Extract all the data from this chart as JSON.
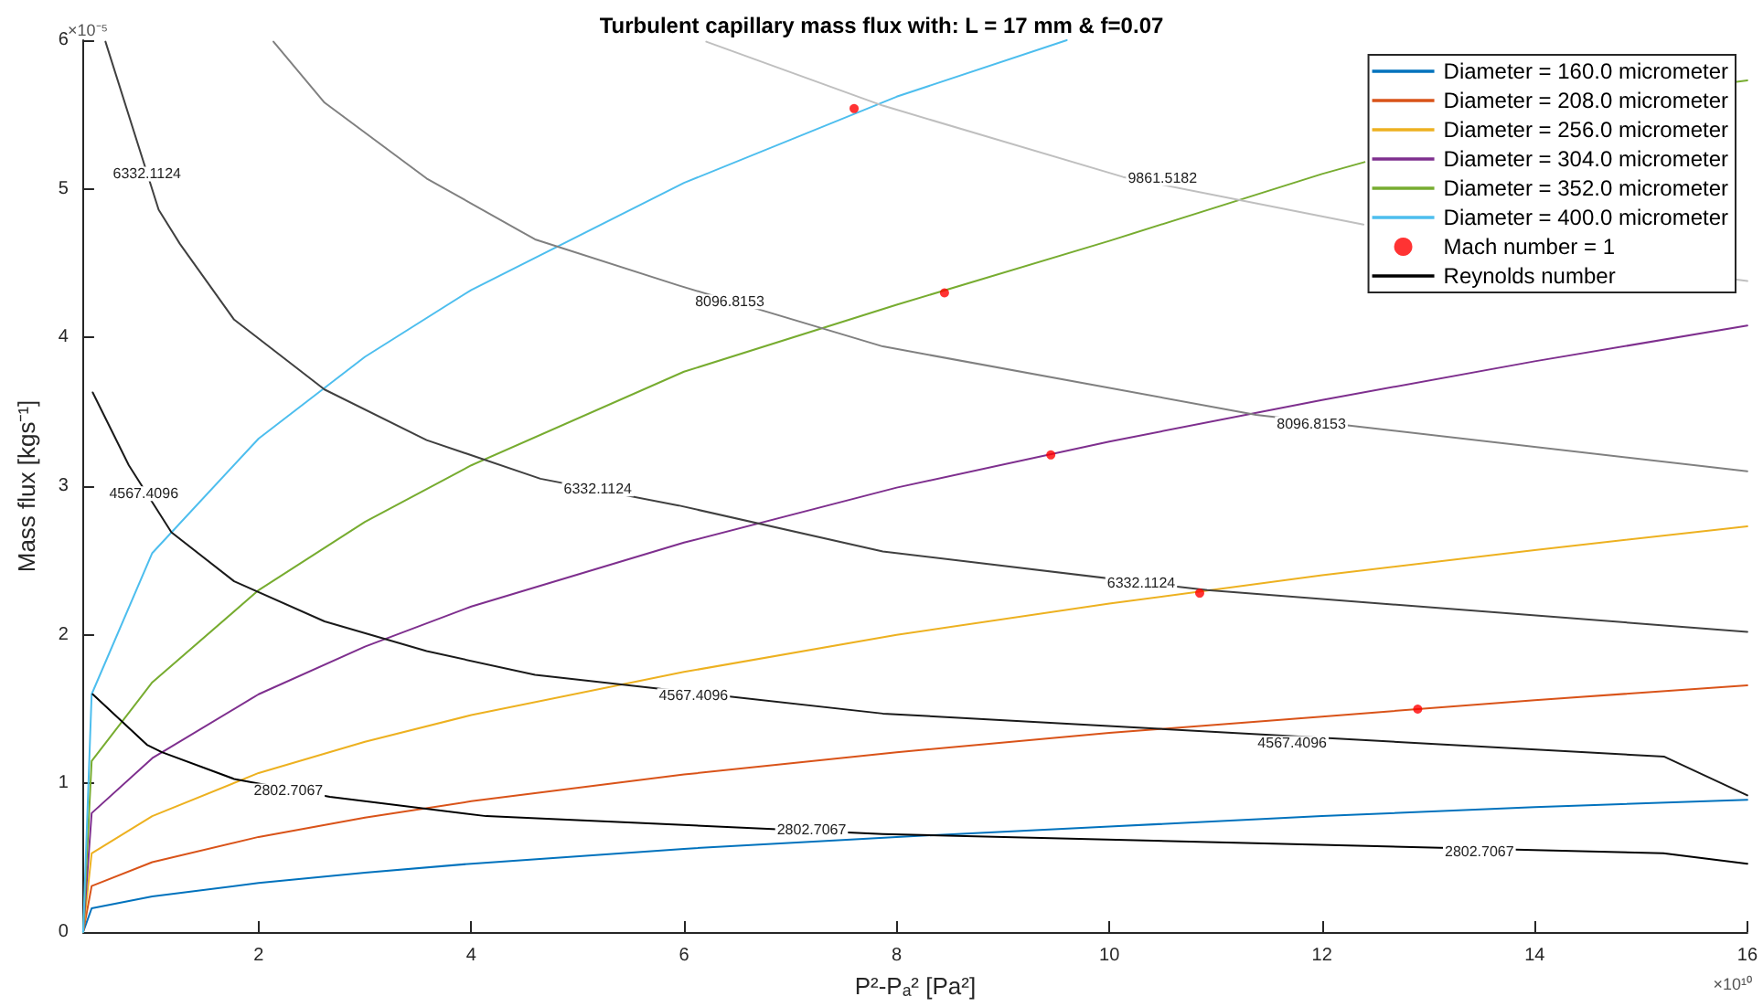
{
  "chart_data": {
    "type": "line",
    "title": "Turbulent capillary mass flux with: L = 17 mm & f=0.07",
    "xlabel": "P²-Pₐ² [Pa²]",
    "ylabel": "Mass flux [kgs⁻¹]",
    "xlim": [
      0.35,
      16
    ],
    "xticks": [
      2,
      4,
      6,
      8,
      10,
      12,
      14,
      16
    ],
    "ylim": [
      0,
      6
    ],
    "yticks": [
      0,
      1,
      2,
      3,
      4,
      5,
      6
    ],
    "grid": false,
    "legend": "top right",
    "marker": "none",
    "line_style": "solid",
    "series": [
      {
        "name": "Diameter = 160.0 micrometer",
        "color": "#0072bd",
        "x": [
          0.35,
          0.43,
          1,
          2,
          3,
          4,
          6,
          8,
          10,
          12,
          14,
          16
        ],
        "values": [
          0,
          0.16,
          0.24,
          0.33,
          0.4,
          0.46,
          0.56,
          0.64,
          0.71,
          0.78,
          0.84,
          0.89
        ]
      },
      {
        "name": "Diameter = 208.0 micrometer",
        "color": "#d95319",
        "x": [
          0.35,
          0.43,
          1,
          2,
          3,
          4,
          6,
          8,
          10,
          12,
          14,
          16
        ],
        "values": [
          0,
          0.31,
          0.47,
          0.64,
          0.77,
          0.88,
          1.06,
          1.21,
          1.34,
          1.45,
          1.56,
          1.66
        ]
      },
      {
        "name": "Diameter = 256.0 micrometer",
        "color": "#edb120",
        "x": [
          0.35,
          0.43,
          1,
          2,
          3,
          4,
          6,
          8,
          10,
          12,
          14,
          16
        ],
        "values": [
          0,
          0.53,
          0.78,
          1.07,
          1.28,
          1.46,
          1.75,
          2.0,
          2.21,
          2.4,
          2.57,
          2.73
        ]
      },
      {
        "name": "Diameter = 304.0 micrometer",
        "color": "#7e2f8e",
        "x": [
          0.35,
          0.43,
          1,
          2,
          3,
          4,
          6,
          8,
          10,
          12,
          14,
          16
        ],
        "values": [
          0,
          0.8,
          1.17,
          1.6,
          1.92,
          2.19,
          2.62,
          2.99,
          3.3,
          3.58,
          3.84,
          4.08
        ]
      },
      {
        "name": "Diameter = 352.0 micrometer",
        "color": "#77ac30",
        "x": [
          0.35,
          0.43,
          1,
          2,
          3,
          4,
          6,
          8,
          10,
          12,
          12.4,
          14,
          15.9,
          16
        ],
        "values": [
          0,
          1.15,
          1.68,
          2.3,
          2.76,
          3.14,
          3.77,
          4.22,
          4.65,
          5.1,
          5.18,
          null,
          5.72,
          5.73
        ]
      },
      {
        "name": "Diameter = 400.0 micrometer",
        "color": "#4dbeee",
        "x": [
          0.35,
          0.43,
          1,
          2,
          3,
          4,
          6,
          8,
          9.6
        ],
        "values": [
          0,
          1.6,
          2.55,
          3.32,
          3.87,
          4.32,
          5.04,
          5.62,
          6.0
        ]
      },
      {
        "name": "Mach number = 1",
        "color": "#ff0000",
        "type": "scatter",
        "marker": "circle",
        "x": [
          7.6,
          8.45,
          9.45,
          10.85,
          12.9
        ],
        "values": [
          5.54,
          4.3,
          3.21,
          2.28,
          1.5
        ]
      },
      {
        "name": "Reynolds number",
        "color": "#000000",
        "x": [
          0.44,
          0.95,
          1.09,
          1.77,
          2.67,
          4.14,
          7.87,
          15.21,
          16
        ],
        "values": [
          1.6,
          1.26,
          1.21,
          1.03,
          0.91,
          0.78,
          0.66,
          0.53,
          0.46
        ]
      },
      {
        "color": "#1a1a1a",
        "x": [
          0.44,
          0.78,
          1.18,
          1.77,
          2.62,
          3.58,
          4.6,
          7.87,
          15.22,
          16
        ],
        "values": [
          3.63,
          3.14,
          2.69,
          2.36,
          2.09,
          1.89,
          1.73,
          1.47,
          1.18,
          0.92
        ]
      },
      {
        "color": "#404040",
        "x": [
          0.56,
          1.06,
          1.26,
          1.77,
          2.62,
          3.58,
          4.65,
          5.95,
          7.87,
          10.92,
          16
        ],
        "values": [
          5.99,
          4.86,
          4.63,
          4.12,
          3.65,
          3.31,
          3.05,
          2.87,
          2.56,
          2.3,
          2.02
        ]
      },
      {
        "color": "#808080",
        "x": [
          2.14,
          2.62,
          3.58,
          4.6,
          5.95,
          7.87,
          11.38,
          16
        ],
        "values": [
          5.99,
          5.58,
          5.07,
          4.66,
          4.35,
          3.94,
          3.48,
          3.1
        ]
      },
      {
        "color": "#bfbfbf",
        "x": [
          6.21,
          7.87,
          10.13,
          12.39,
          14,
          15.9,
          16
        ],
        "values": [
          5.99,
          5.56,
          5.08,
          4.76,
          null,
          4.39,
          4.38
        ]
      }
    ],
    "annotations": [
      "×10⁻⁵",
      "×10¹⁰",
      {
        "text": "6332.1124",
        "x": 0.95,
        "y": 5.1
      },
      {
        "text": "4567.4096",
        "x": 0.92,
        "y": 2.95
      },
      {
        "text": "8096.8153",
        "x": 6.43,
        "y": 4.24
      },
      {
        "text": "9861.5182",
        "x": 10.5,
        "y": 5.07
      },
      {
        "text": "8096.8153",
        "x": 11.9,
        "y": 3.42
      },
      {
        "text": "6332.1124",
        "x": 5.19,
        "y": 2.98
      },
      {
        "text": "6332.1124",
        "x": 10.3,
        "y": 2.35
      },
      {
        "text": "4567.4096",
        "x": 6.09,
        "y": 1.59
      },
      {
        "text": "4567.4096",
        "x": 11.72,
        "y": 1.27
      },
      {
        "text": "2802.7067",
        "x": 2.28,
        "y": 0.95
      },
      {
        "text": "2802.7067",
        "x": 7.2,
        "y": 0.69
      },
      {
        "text": "2802.7067",
        "x": 13.48,
        "y": 0.54
      }
    ]
  }
}
